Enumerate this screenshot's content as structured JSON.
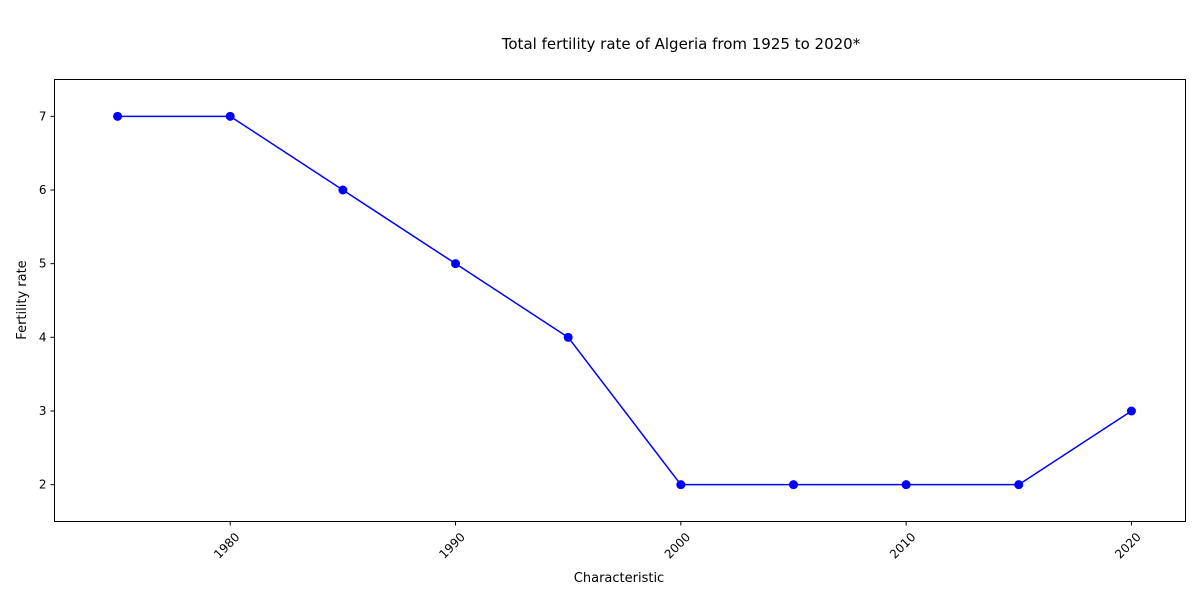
{
  "chart_data": {
    "type": "line",
    "title": "Total fertility rate of Algeria from 1925 to 2020*",
    "xlabel": "Characteristic",
    "ylabel": "Fertility rate",
    "x": [
      1975,
      1980,
      1985,
      1990,
      1995,
      2000,
      2005,
      2010,
      2015,
      2020
    ],
    "series": [
      {
        "values": [
          7,
          7,
          6,
          5,
          4,
          2,
          2,
          2,
          2,
          3
        ]
      }
    ],
    "xlim": [
      1972.2,
      2022.4
    ],
    "ylim": [
      1.5,
      7.5
    ],
    "xticks": [
      "1980",
      "1990",
      "2000",
      "2010",
      "2020"
    ],
    "yticks": [
      "2",
      "3",
      "4",
      "5",
      "6",
      "7"
    ],
    "xtick_rotation": "45",
    "grid": false,
    "legend": "none",
    "line_color": "#0000ff",
    "marker": "circle"
  }
}
